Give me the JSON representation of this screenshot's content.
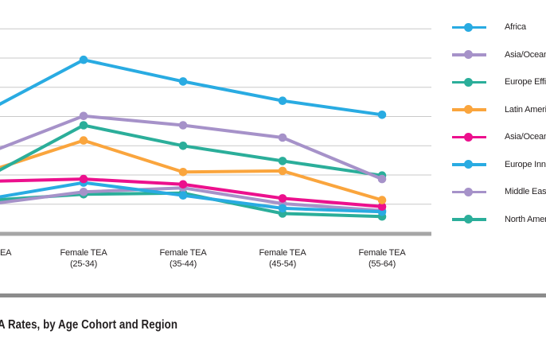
{
  "caption": "A Rates, by Age Cohort and Region",
  "colors": {
    "gridline": "#C9C9C9",
    "axis_line": "#A6A6A6",
    "separator_line": "#8C8C8C",
    "text": "#231F20",
    "blue": "#29ABE2",
    "purple": "#A692C9",
    "teal": "#2BAE9A",
    "orange": "#FAA53D",
    "magenta": "#EC108D"
  },
  "legend": {
    "position": "right",
    "items": [
      {
        "label": "Africa",
        "color": "#29ABE2"
      },
      {
        "label": "Asia/Oceania",
        "color": "#A692C9"
      },
      {
        "label": "Europe Efficie",
        "color": "#2BAE9A"
      },
      {
        "label": "Latin America",
        "color": "#FAA53D"
      },
      {
        "label": "Asia/Oceania",
        "color": "#EC108D"
      },
      {
        "label": "Europe Innov",
        "color": "#29ABE2"
      },
      {
        "label": "Middle Easte",
        "color": "#A692C9"
      },
      {
        "label": "North Americ",
        "color": "#2BAE9A"
      }
    ]
  },
  "chart_data": {
    "type": "line",
    "title": "",
    "xlabel": "",
    "ylabel": "",
    "grid": true,
    "legend_position": "right",
    "ylim": [
      0,
      40
    ],
    "grid_step": 5,
    "categories": [
      {
        "line1": "EA",
        "line2": ""
      },
      {
        "line1": "Female TEA",
        "line2": "(25-34)"
      },
      {
        "line1": "Female TEA",
        "line2": "(35-44)"
      },
      {
        "line1": "Female TEA",
        "line2": "(45-54)"
      },
      {
        "line1": "Female TEA",
        "line2": "(55-64)"
      }
    ],
    "series": [
      {
        "name": "Africa",
        "color": "#29ABE2",
        "values": [
          20.7,
          29.7,
          26.0,
          22.7,
          20.3
        ]
      },
      {
        "name": "Asia/Oceania",
        "color": "#A692C9",
        "values": [
          13.5,
          20.1,
          18.5,
          16.4,
          9.3
        ]
      },
      {
        "name": "Europe Efficie",
        "color": "#2BAE9A",
        "values": [
          9.4,
          18.5,
          15.0,
          12.4,
          9.9
        ]
      },
      {
        "name": "Latin America",
        "color": "#FAA53D",
        "values": [
          10.4,
          15.9,
          10.5,
          10.7,
          5.7
        ]
      },
      {
        "name": "Asia/Oceania",
        "color": "#EC108D",
        "values": [
          8.9,
          9.3,
          8.4,
          6.0,
          4.6
        ]
      },
      {
        "name": "Europe Innov",
        "color": "#29ABE2",
        "values": [
          5.8,
          8.7,
          6.5,
          4.3,
          3.7
        ]
      },
      {
        "name": "Middle Easte",
        "color": "#A692C9",
        "values": [
          4.9,
          7.1,
          7.8,
          5.1,
          3.9
        ]
      },
      {
        "name": "North Americ",
        "color": "#2BAE9A",
        "values": [
          5.6,
          6.7,
          6.9,
          3.4,
          2.9
        ]
      }
    ]
  }
}
